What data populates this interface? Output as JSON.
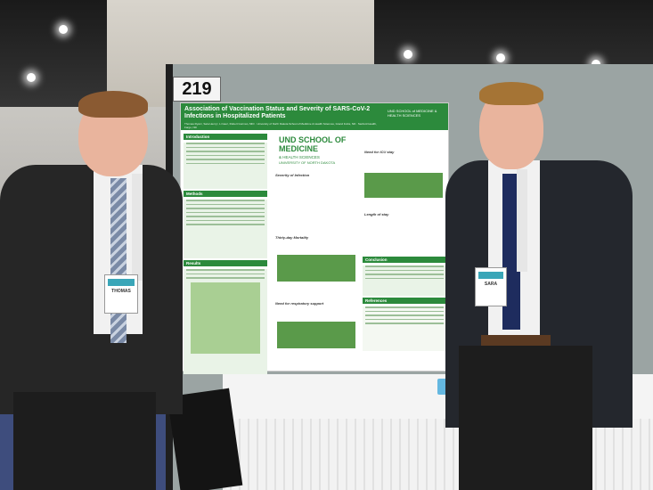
{
  "board_number": "219",
  "poster": {
    "title": "Association of Vaccination Status and Severity of SARS-CoV-2 Infections in Hospitalized Patients",
    "authors": "Thomas Ryan¹, Sara Henry¹, Li Gao¹, Robert Gorman, MD¹ · University of North Dakota School of Medicine & Health Sciences, Grand Forks, ND · Sanford Health, Fargo, ND",
    "institution_logo": "UND SCHOOL of MEDICINE & HEALTH SCIENCES",
    "institution_big_line1": "UND SCHOOL OF MEDICINE",
    "institution_big_line2": "& HEALTH SCIENCES",
    "institution_big_line3": "UNIVERSITY OF NORTH DAKOTA",
    "left_sections": [
      "Introduction",
      "Methods",
      "Results"
    ],
    "middle_headings": [
      "Severity of Infection",
      "Thirty-day Mortality",
      "Need for respiratory support"
    ],
    "right_sections": [
      "Need for ICU stay",
      "Length of stay",
      "Conclusion",
      "References"
    ]
  },
  "badges": {
    "left": "THOMAS",
    "right": "SARA"
  },
  "lanyard_text": "AACP"
}
